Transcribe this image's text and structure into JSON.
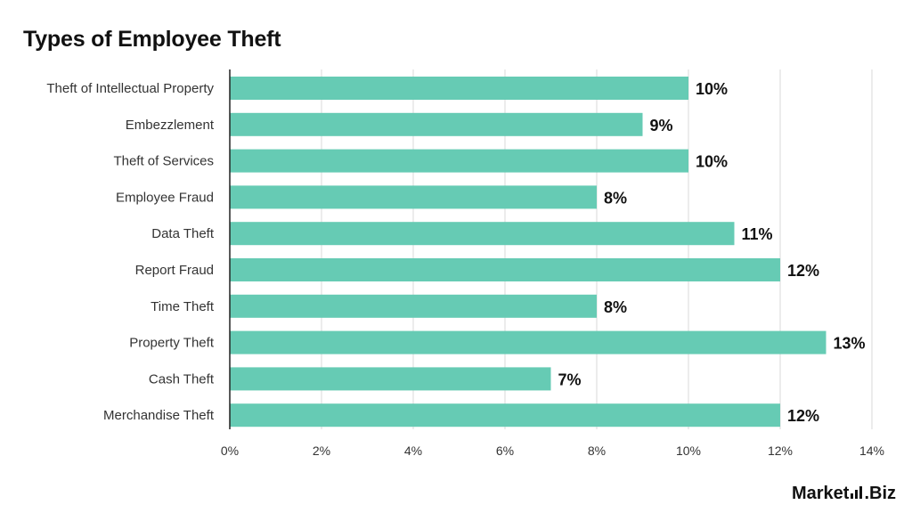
{
  "title": "Types of Employee Theft",
  "brand": {
    "name_left": "Market",
    "name_right": ".Biz"
  },
  "colors": {
    "bar": "#66CBB4",
    "grid": "#d9d9d9",
    "axis": "#222222"
  },
  "chart_data": {
    "type": "bar",
    "orientation": "horizontal",
    "categories": [
      "Theft of Intellectual Property",
      "Embezzlement",
      "Theft of Services",
      "Employee Fraud",
      "Data Theft",
      "Report Fraud",
      "Time Theft",
      "Property Theft",
      "Cash Theft",
      "Merchandise Theft"
    ],
    "values": [
      10,
      9,
      10,
      8,
      11,
      12,
      8,
      13,
      7,
      12
    ],
    "value_labels": [
      "10%",
      "9%",
      "10%",
      "8%",
      "11%",
      "12%",
      "8%",
      "13%",
      "7%",
      "12%"
    ],
    "xlim": [
      0,
      14
    ],
    "xticks": [
      0,
      2,
      4,
      6,
      8,
      10,
      12,
      14
    ],
    "xtick_labels": [
      "0%",
      "2%",
      "4%",
      "6%",
      "8%",
      "10%",
      "12%",
      "14%"
    ],
    "grid": true
  }
}
